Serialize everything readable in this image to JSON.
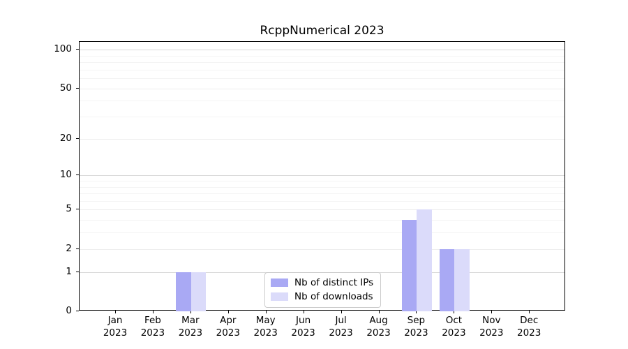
{
  "title": "RcppNumerical 2023",
  "chart_data": {
    "type": "bar",
    "title": "RcppNumerical 2023",
    "categories": [
      "Jan",
      "Feb",
      "Mar",
      "Apr",
      "May",
      "Jun",
      "Jul",
      "Aug",
      "Sep",
      "Oct",
      "Nov",
      "Dec"
    ],
    "x_tick_second_line": "2023",
    "series": [
      {
        "name": "Nb of distinct IPs",
        "color": "#a9a9f4",
        "values": [
          0,
          0,
          1,
          0,
          0,
          0,
          0,
          0,
          4,
          2,
          0,
          0
        ]
      },
      {
        "name": "Nb of downloads",
        "color": "#dbdbfa",
        "values": [
          0,
          0,
          1,
          0,
          0,
          0,
          0,
          0,
          5,
          2,
          0,
          0
        ]
      }
    ],
    "y_axis": {
      "scale": "log1p",
      "labeled_ticks": [
        100,
        50,
        20,
        10,
        5,
        2,
        1,
        0
      ],
      "decade_gridlines": [
        1,
        10,
        100
      ],
      "mid_gridlines": [
        2,
        5,
        20,
        50
      ],
      "minor_gridlines": [
        3,
        4,
        6,
        7,
        8,
        9,
        30,
        40,
        60,
        70,
        80,
        90
      ],
      "ylim": [
        0,
        115
      ]
    },
    "legend": {
      "position": "lower center",
      "entries": [
        "Nb of distinct IPs",
        "Nb of downloads"
      ]
    },
    "grid": "on",
    "colors": {
      "decade_grid": "#d8d8d8",
      "mid_grid": "#ededed",
      "minor_grid": "#f4f4f4",
      "axis_frame": "#000000",
      "text": "#000000",
      "background": "#ffffff"
    }
  }
}
